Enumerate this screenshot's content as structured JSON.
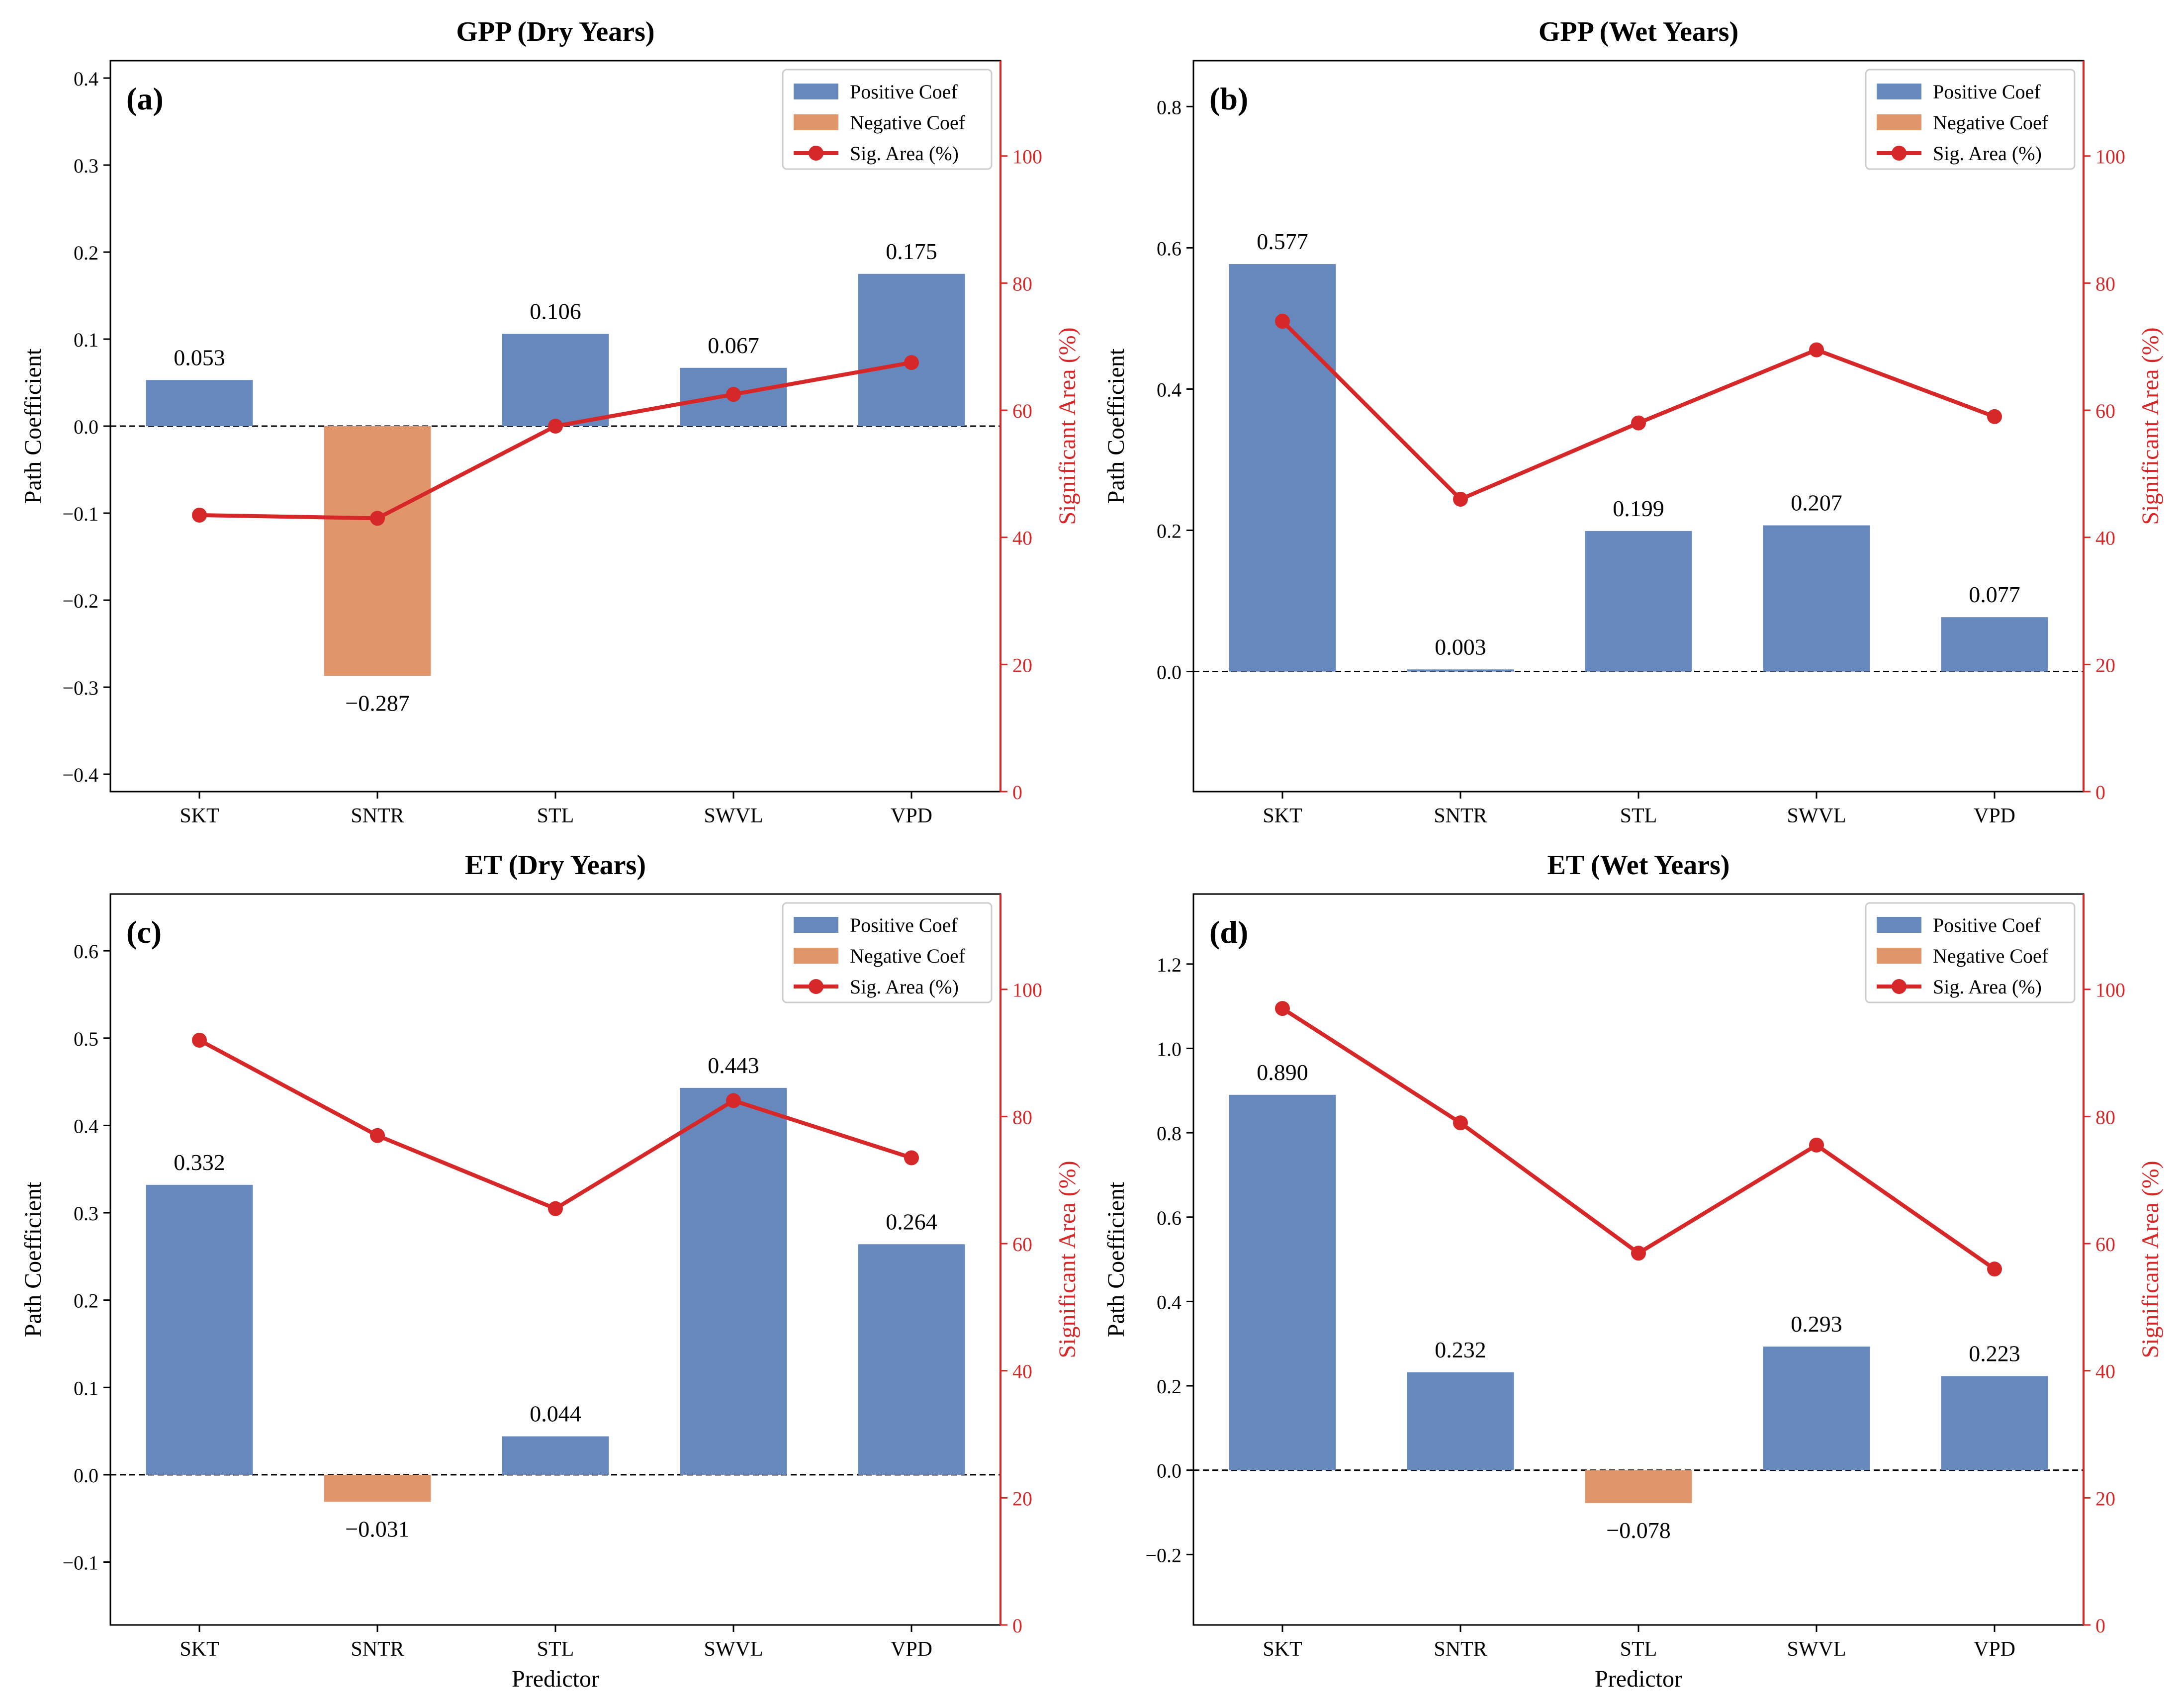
{
  "colors": {
    "positive": "#6788bc",
    "negative": "#e1956a",
    "line": "#d62828",
    "right_axis": "#d62828",
    "axis": "#000000"
  },
  "legend": {
    "positive": "Positive Coef",
    "negative": "Negative Coef",
    "line": "Sig. Area (%)"
  },
  "chart_data": [
    {
      "type": "bar",
      "panel_label": "(a)",
      "title": "GPP (Dry Years)",
      "categories": [
        "SKT",
        "SNTR",
        "STL",
        "SWVL",
        "VPD"
      ],
      "values": [
        0.053,
        -0.287,
        0.106,
        0.067,
        0.175
      ],
      "value_labels": [
        "0.053",
        "−0.287",
        "0.106",
        "0.067",
        "0.175"
      ],
      "sig_area": [
        43.5,
        43.0,
        57.5,
        62.5,
        67.5
      ],
      "ylabel": "Path Coefficient",
      "y2label": "Significant Area (%)",
      "xlabel": "",
      "ylim": [
        -0.42,
        0.42
      ],
      "yticks": [
        -0.4,
        -0.3,
        -0.2,
        -0.1,
        0.0,
        0.1,
        0.2,
        0.3,
        0.4
      ],
      "ytick_labels": [
        "−0.4",
        "−0.3",
        "−0.2",
        "−0.1",
        "0.0",
        "0.1",
        "0.2",
        "0.3",
        "0.4"
      ],
      "y2lim": [
        0,
        115
      ],
      "y2ticks": [
        0,
        20,
        40,
        60,
        80,
        100
      ],
      "y2tick_labels": [
        "0",
        "20",
        "40",
        "60",
        "80",
        "100"
      ],
      "legend_position": "top-right"
    },
    {
      "type": "bar",
      "panel_label": "(b)",
      "title": "GPP (Wet Years)",
      "categories": [
        "SKT",
        "SNTR",
        "STL",
        "SWVL",
        "VPD"
      ],
      "values": [
        0.577,
        0.003,
        0.199,
        0.207,
        0.077
      ],
      "value_labels": [
        "0.577",
        "0.003",
        "0.199",
        "0.207",
        "0.077"
      ],
      "sig_area": [
        74.0,
        46.0,
        58.0,
        69.5,
        59.0
      ],
      "ylabel": "Path Coefficient",
      "y2label": "Significant Area (%)",
      "xlabel": "",
      "ylim": [
        -0.17,
        0.865
      ],
      "yticks": [
        0.0,
        0.2,
        0.4,
        0.6,
        0.8
      ],
      "ytick_labels": [
        "0.0",
        "0.2",
        "0.4",
        "0.6",
        "0.8"
      ],
      "y2lim": [
        0,
        115
      ],
      "y2ticks": [
        0,
        20,
        40,
        60,
        80,
        100
      ],
      "y2tick_labels": [
        "0",
        "20",
        "40",
        "60",
        "80",
        "100"
      ],
      "legend_position": "top-right"
    },
    {
      "type": "bar",
      "panel_label": "(c)",
      "title": "ET (Dry Years)",
      "categories": [
        "SKT",
        "SNTR",
        "STL",
        "SWVL",
        "VPD"
      ],
      "values": [
        0.332,
        -0.031,
        0.044,
        0.443,
        0.264
      ],
      "value_labels": [
        "0.332",
        "−0.031",
        "0.044",
        "0.443",
        "0.264"
      ],
      "sig_area": [
        92.0,
        77.0,
        65.5,
        82.5,
        73.5
      ],
      "ylabel": "Path Coefficient",
      "y2label": "Significant Area (%)",
      "xlabel": "Predictor",
      "ylim": [
        -0.172,
        0.665
      ],
      "yticks": [
        -0.1,
        0.0,
        0.1,
        0.2,
        0.3,
        0.4,
        0.5,
        0.6
      ],
      "ytick_labels": [
        "−0.1",
        "0.0",
        "0.1",
        "0.2",
        "0.3",
        "0.4",
        "0.5",
        "0.6"
      ],
      "y2lim": [
        0,
        115
      ],
      "y2ticks": [
        0,
        20,
        40,
        60,
        80,
        100
      ],
      "y2tick_labels": [
        "0",
        "20",
        "40",
        "60",
        "80",
        "100"
      ],
      "legend_position": "top-right"
    },
    {
      "type": "bar",
      "panel_label": "(d)",
      "title": "ET (Wet Years)",
      "categories": [
        "SKT",
        "SNTR",
        "STL",
        "SWVL",
        "VPD"
      ],
      "values": [
        0.89,
        0.232,
        -0.078,
        0.293,
        0.223
      ],
      "value_labels": [
        "0.890",
        "0.232",
        "−0.078",
        "0.293",
        "0.223"
      ],
      "sig_area": [
        97.0,
        79.0,
        58.5,
        75.5,
        56.0
      ],
      "ylabel": "Path Coefficient",
      "y2label": "Significant Area (%)",
      "xlabel": "Predictor",
      "ylim": [
        -0.367,
        1.366
      ],
      "yticks": [
        -0.2,
        0.0,
        0.2,
        0.4,
        0.6,
        0.8,
        1.0,
        1.2
      ],
      "ytick_labels": [
        "−0.2",
        "0.0",
        "0.2",
        "0.4",
        "0.6",
        "0.8",
        "1.0",
        "1.2"
      ],
      "y2lim": [
        0,
        115
      ],
      "y2ticks": [
        0,
        20,
        40,
        60,
        80,
        100
      ],
      "y2tick_labels": [
        "0",
        "20",
        "40",
        "60",
        "80",
        "100"
      ],
      "legend_position": "top-right"
    }
  ]
}
